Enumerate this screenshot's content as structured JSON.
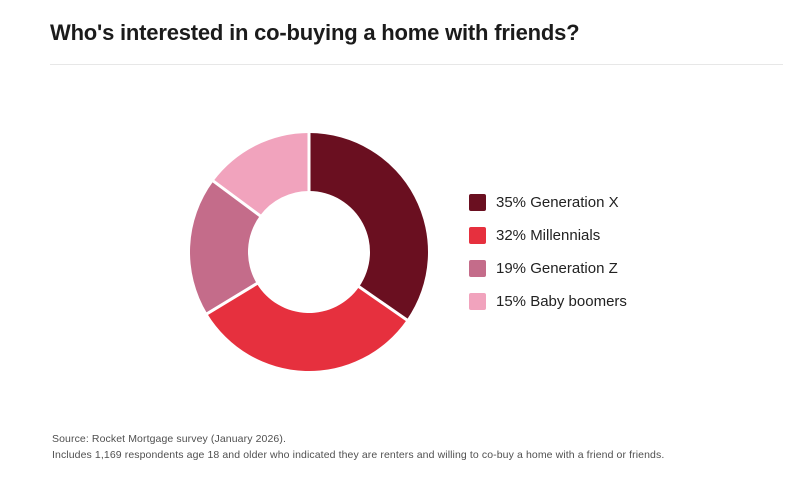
{
  "header": {
    "title": "Who's interested in co-buying a home with friends?"
  },
  "chart_data": {
    "type": "pie",
    "subtype": "donut",
    "title": "Who's interested in co-buying a home with friends?",
    "unit": "%",
    "start_angle_deg": 0,
    "direction": "clockwise",
    "inner_radius_ratio": 0.51,
    "legend_position": "right",
    "separator_color": "#ffffff",
    "segments": [
      {
        "label": "Generation X",
        "value": 35,
        "color": "#6a0f20",
        "legend_label": "35% Generation X"
      },
      {
        "label": "Millennials",
        "value": 32,
        "color": "#e6303e",
        "legend_label": "32% Millennials"
      },
      {
        "label": "Generation Z",
        "value": 19,
        "color": "#c46c8a",
        "legend_label": "19% Generation Z"
      },
      {
        "label": "Baby boomers",
        "value": 15,
        "color": "#f1a3bd",
        "legend_label": "15% Baby boomers"
      }
    ]
  },
  "footer": {
    "line1": "Source: Rocket Mortgage survey (January 2026).",
    "line2": "Includes 1,169 respondents age 18 and older who indicated they are renters and willing to co-buy a home with a friend or friends."
  }
}
